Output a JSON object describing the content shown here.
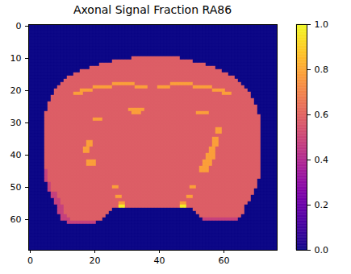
{
  "chart_data": {
    "type": "heatmap",
    "title": "Axonal Signal Fraction RA86",
    "color": "plasma",
    "xlim": [
      -0.5,
      76.5
    ],
    "ylim": [
      69.5,
      -0.5
    ],
    "xticks": [
      0,
      20,
      40,
      60
    ],
    "yticks": [
      0,
      10,
      20,
      30,
      40,
      50,
      60
    ],
    "clim": [
      0,
      1
    ],
    "cticks": [
      {
        "value": 0,
        "label": "0.0"
      },
      0.2,
      0.4,
      0.6,
      0.8,
      {
        "value": 1,
        "label": "1.0"
      }
    ],
    "cells": [
      [
        [
          77,
          0
        ]
      ],
      [
        [
          77,
          0
        ]
      ],
      [
        [
          77,
          0
        ]
      ],
      [
        [
          77,
          0
        ]
      ],
      [
        [
          77,
          0
        ]
      ],
      [
        [
          77,
          0
        ]
      ],
      [
        [
          77,
          0
        ]
      ],
      [
        [
          77,
          0
        ]
      ],
      [
        [
          77,
          0
        ]
      ],
      [
        [
          77,
          0
        ]
      ],
      [
        [
          32,
          0
        ],
        [
          15,
          0.58
        ],
        [
          30,
          0
        ]
      ],
      [
        [
          26,
          0
        ],
        [
          25,
          0.58
        ],
        [
          26,
          0
        ]
      ],
      [
        [
          22,
          0
        ],
        [
          33,
          0.58
        ],
        [
          22,
          0
        ]
      ],
      [
        [
          19,
          0
        ],
        [
          39,
          0.58
        ],
        [
          19,
          0
        ]
      ],
      [
        [
          16,
          0
        ],
        [
          44,
          0.58
        ],
        [
          17,
          0
        ]
      ],
      [
        [
          14,
          0
        ],
        [
          48,
          0.58
        ],
        [
          15,
          0
        ]
      ],
      [
        [
          12,
          0
        ],
        [
          52,
          0.58
        ],
        [
          13,
          0
        ]
      ],
      [
        [
          11,
          0
        ],
        [
          54,
          0.58
        ],
        [
          12,
          0
        ]
      ],
      [
        [
          10,
          0
        ],
        [
          16,
          0.58
        ],
        [
          7,
          0.78
        ],
        [
          11,
          0.58
        ],
        [
          7,
          0.78
        ],
        [
          15,
          0.58
        ],
        [
          11,
          0
        ]
      ],
      [
        [
          9,
          0
        ],
        [
          11,
          0.58
        ],
        [
          6,
          0.78
        ],
        [
          7,
          0.58
        ],
        [
          4,
          0.78
        ],
        [
          3,
          0.58
        ],
        [
          4,
          0.78
        ],
        [
          7,
          0.58
        ],
        [
          6,
          0.78
        ],
        [
          10,
          0.58
        ],
        [
          10,
          0
        ]
      ],
      [
        [
          8,
          0
        ],
        [
          8,
          0.58
        ],
        [
          4,
          0.78
        ],
        [
          37,
          0.58
        ],
        [
          4,
          0.78
        ],
        [
          7,
          0.58
        ],
        [
          9,
          0
        ]
      ],
      [
        [
          8,
          0
        ],
        [
          6,
          0.58
        ],
        [
          3,
          0.78
        ],
        [
          43,
          0.58
        ],
        [
          3,
          0.78
        ],
        [
          6,
          0.58
        ],
        [
          8,
          0
        ]
      ],
      [
        [
          7,
          0
        ],
        [
          62,
          0.58
        ],
        [
          8,
          0
        ]
      ],
      [
        [
          7,
          0
        ],
        [
          63,
          0.58
        ],
        [
          7,
          0
        ]
      ],
      [
        [
          6,
          0
        ],
        [
          64,
          0.58
        ],
        [
          7,
          0
        ]
      ],
      [
        [
          6,
          0
        ],
        [
          65,
          0.58
        ],
        [
          6,
          0
        ]
      ],
      [
        [
          6,
          0
        ],
        [
          25,
          0.58
        ],
        [
          5,
          0.78
        ],
        [
          35,
          0.58
        ],
        [
          6,
          0
        ]
      ],
      [
        [
          5,
          0
        ],
        [
          27,
          0.58
        ],
        [
          3,
          0.78
        ],
        [
          17,
          0.58
        ],
        [
          4,
          0.78
        ],
        [
          15,
          0.58
        ],
        [
          6,
          0
        ]
      ],
      [
        [
          5,
          0
        ],
        [
          67,
          0.58
        ],
        [
          5,
          0
        ]
      ],
      [
        [
          5,
          0
        ],
        [
          15,
          0.58
        ],
        [
          3,
          0.78
        ],
        [
          49,
          0.58
        ],
        [
          5,
          0
        ]
      ],
      [
        [
          5,
          0
        ],
        [
          67,
          0.58
        ],
        [
          5,
          0
        ]
      ],
      [
        [
          5,
          0
        ],
        [
          67,
          0.58
        ],
        [
          5,
          0
        ]
      ],
      [
        [
          5,
          0
        ],
        [
          53,
          0.58
        ],
        [
          2,
          0.78
        ],
        [
          12,
          0.58
        ],
        [
          5,
          0
        ]
      ],
      [
        [
          5,
          0
        ],
        [
          53,
          0.58
        ],
        [
          2,
          0.78
        ],
        [
          12,
          0.58
        ],
        [
          5,
          0
        ]
      ],
      [
        [
          5,
          0
        ],
        [
          67,
          0.58
        ],
        [
          5,
          0
        ]
      ],
      [
        [
          5,
          0
        ],
        [
          52,
          0.58
        ],
        [
          2,
          0.78
        ],
        [
          13,
          0.58
        ],
        [
          5,
          0
        ]
      ],
      [
        [
          5,
          0
        ],
        [
          13,
          0.58
        ],
        [
          2,
          0.78
        ],
        [
          37,
          0.58
        ],
        [
          2,
          0.78
        ],
        [
          13,
          0.58
        ],
        [
          5,
          0
        ]
      ],
      [
        [
          5,
          0
        ],
        [
          13,
          0.58
        ],
        [
          2,
          0.78
        ],
        [
          37,
          0.58
        ],
        [
          2,
          0.78
        ],
        [
          13,
          0.58
        ],
        [
          5,
          0
        ]
      ],
      [
        [
          5,
          0
        ],
        [
          12,
          0.58
        ],
        [
          2,
          0.78
        ],
        [
          37,
          0.58
        ],
        [
          2,
          0.78
        ],
        [
          14,
          0.58
        ],
        [
          5,
          0
        ]
      ],
      [
        [
          5,
          0
        ],
        [
          12,
          0.58
        ],
        [
          2,
          0.78
        ],
        [
          37,
          0.58
        ],
        [
          2,
          0.78
        ],
        [
          14,
          0.58
        ],
        [
          5,
          0
        ]
      ],
      [
        [
          5,
          0
        ],
        [
          50,
          0.58
        ],
        [
          3,
          0.78
        ],
        [
          14,
          0.58
        ],
        [
          5,
          0
        ]
      ],
      [
        [
          5,
          0
        ],
        [
          50,
          0.58
        ],
        [
          3,
          0.78
        ],
        [
          14,
          0.58
        ],
        [
          5,
          0
        ]
      ],
      [
        [
          5,
          0
        ],
        [
          13,
          0.58
        ],
        [
          3,
          0.78
        ],
        [
          33,
          0.58
        ],
        [
          3,
          0.78
        ],
        [
          15,
          0.58
        ],
        [
          5,
          0
        ]
      ],
      [
        [
          5,
          0
        ],
        [
          13,
          0.58
        ],
        [
          3,
          0.78
        ],
        [
          33,
          0.58
        ],
        [
          3,
          0.78
        ],
        [
          15,
          0.58
        ],
        [
          5,
          0
        ]
      ],
      [
        [
          5,
          0
        ],
        [
          48,
          0.58
        ],
        [
          3,
          0.78
        ],
        [
          16,
          0.58
        ],
        [
          5,
          0
        ]
      ],
      [
        [
          5,
          0
        ],
        [
          1,
          0.48
        ],
        [
          47,
          0.58
        ],
        [
          3,
          0.78
        ],
        [
          16,
          0.58
        ],
        [
          5,
          0
        ]
      ],
      [
        [
          5,
          0
        ],
        [
          1,
          0.48
        ],
        [
          66,
          0.58
        ],
        [
          5,
          0
        ]
      ],
      [
        [
          5,
          0
        ],
        [
          1,
          0.48
        ],
        [
          66,
          0.58
        ],
        [
          5,
          0
        ]
      ],
      [
        [
          5,
          0
        ],
        [
          1,
          0.48
        ],
        [
          65,
          0.58
        ],
        [
          6,
          0
        ]
      ],
      [
        [
          6,
          0
        ],
        [
          1,
          0.48
        ],
        [
          64,
          0.58
        ],
        [
          6,
          0
        ]
      ],
      [
        [
          6,
          0
        ],
        [
          1,
          0.48
        ],
        [
          19,
          0.58
        ],
        [
          2,
          0.78
        ],
        [
          22,
          0.58
        ],
        [
          2,
          0.78
        ],
        [
          19,
          0.58
        ],
        [
          6,
          0
        ]
      ],
      [
        [
          6,
          0
        ],
        [
          1,
          0.48
        ],
        [
          63,
          0.58
        ],
        [
          7,
          0
        ]
      ],
      [
        [
          7,
          0
        ],
        [
          2,
          0.48
        ],
        [
          61,
          0.58
        ],
        [
          7,
          0
        ]
      ],
      [
        [
          7,
          0
        ],
        [
          2,
          0.48
        ],
        [
          18,
          0.58
        ],
        [
          2,
          0.78
        ],
        [
          20,
          0.58
        ],
        [
          2,
          0.78
        ],
        [
          18,
          0.58
        ],
        [
          8,
          0
        ]
      ],
      [
        [
          8,
          0
        ],
        [
          2,
          0.48
        ],
        [
          59,
          0.58
        ],
        [
          8,
          0
        ]
      ],
      [
        [
          8,
          0
        ],
        [
          2,
          0.48
        ],
        [
          18,
          0.58
        ],
        [
          2,
          0.78
        ],
        [
          17,
          0.58
        ],
        [
          2,
          0.78
        ],
        [
          19,
          0.58
        ],
        [
          9,
          0
        ]
      ],
      [
        [
          9,
          0
        ],
        [
          2,
          0.48
        ],
        [
          17,
          0.58
        ],
        [
          2,
          0.97
        ],
        [
          17,
          0.58
        ],
        [
          2,
          0.97
        ],
        [
          18,
          0.58
        ],
        [
          10,
          0
        ]
      ],
      [
        [
          9,
          0
        ],
        [
          2,
          0.48
        ],
        [
          15,
          0.58
        ],
        [
          25,
          0
        ],
        [
          16,
          0.58
        ],
        [
          10,
          0
        ]
      ],
      [
        [
          9,
          0
        ],
        [
          2,
          0.48
        ],
        [
          14,
          0.58
        ],
        [
          27,
          0
        ],
        [
          15,
          0.58
        ],
        [
          10,
          0
        ]
      ],
      [
        [
          10,
          0
        ],
        [
          2,
          0.48
        ],
        [
          12,
          0.58
        ],
        [
          29,
          0
        ],
        [
          13,
          0.58
        ],
        [
          11,
          0
        ]
      ],
      [
        [
          10,
          0
        ],
        [
          3,
          0.48
        ],
        [
          10,
          0.58
        ],
        [
          31,
          0
        ],
        [
          11,
          0.48
        ],
        [
          12,
          0
        ]
      ],
      [
        [
          12,
          0
        ],
        [
          9,
          0.48
        ],
        [
          56,
          0
        ]
      ],
      [
        [
          77,
          0
        ]
      ],
      [
        [
          77,
          0
        ]
      ],
      [
        [
          77,
          0
        ]
      ],
      [
        [
          77,
          0
        ]
      ],
      [
        [
          77,
          0
        ]
      ],
      [
        [
          77,
          0
        ]
      ],
      [
        [
          77,
          0
        ]
      ],
      [
        [
          77,
          0
        ]
      ]
    ]
  }
}
